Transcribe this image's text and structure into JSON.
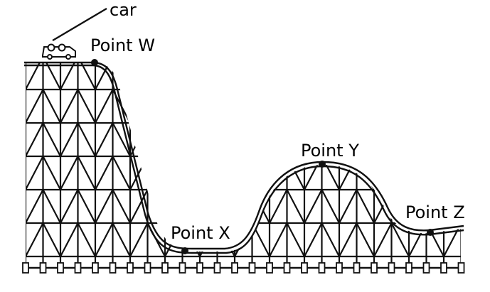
{
  "labels": {
    "car": "car",
    "point_w": "Point W",
    "point_x": "Point X",
    "point_y": "Point Y",
    "point_z": "Point Z"
  },
  "colors": {
    "ink": "#111111",
    "background": "#ffffff"
  }
}
